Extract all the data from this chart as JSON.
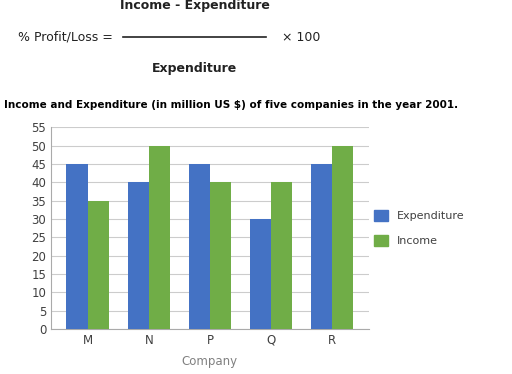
{
  "companies": [
    "M",
    "N",
    "P",
    "Q",
    "R"
  ],
  "expenditure": [
    45,
    40,
    45,
    30,
    45
  ],
  "income": [
    35,
    50,
    40,
    40,
    50
  ],
  "bar_color_expenditure": "#4472C4",
  "bar_color_income": "#70AD47",
  "xlabel": "Company",
  "ylabel": "",
  "ylim": [
    0,
    55
  ],
  "yticks": [
    0,
    5,
    10,
    15,
    20,
    25,
    30,
    35,
    40,
    45,
    50,
    55
  ],
  "title_chart": "Income and Expenditure (in million US $) of five companies in the year 2001.",
  "formula_line1": "% Profit/Loss =",
  "formula_numerator": "Income - Expenditure",
  "formula_denominator": "Expenditure",
  "formula_multiplier": "× 100",
  "legend_expenditure": "Expenditure",
  "legend_income": "Income",
  "bar_width": 0.35,
  "background_color": "#ffffff",
  "xlabel_color": "#808080",
  "title_color": "#000000",
  "tick_label_color": "#404040"
}
